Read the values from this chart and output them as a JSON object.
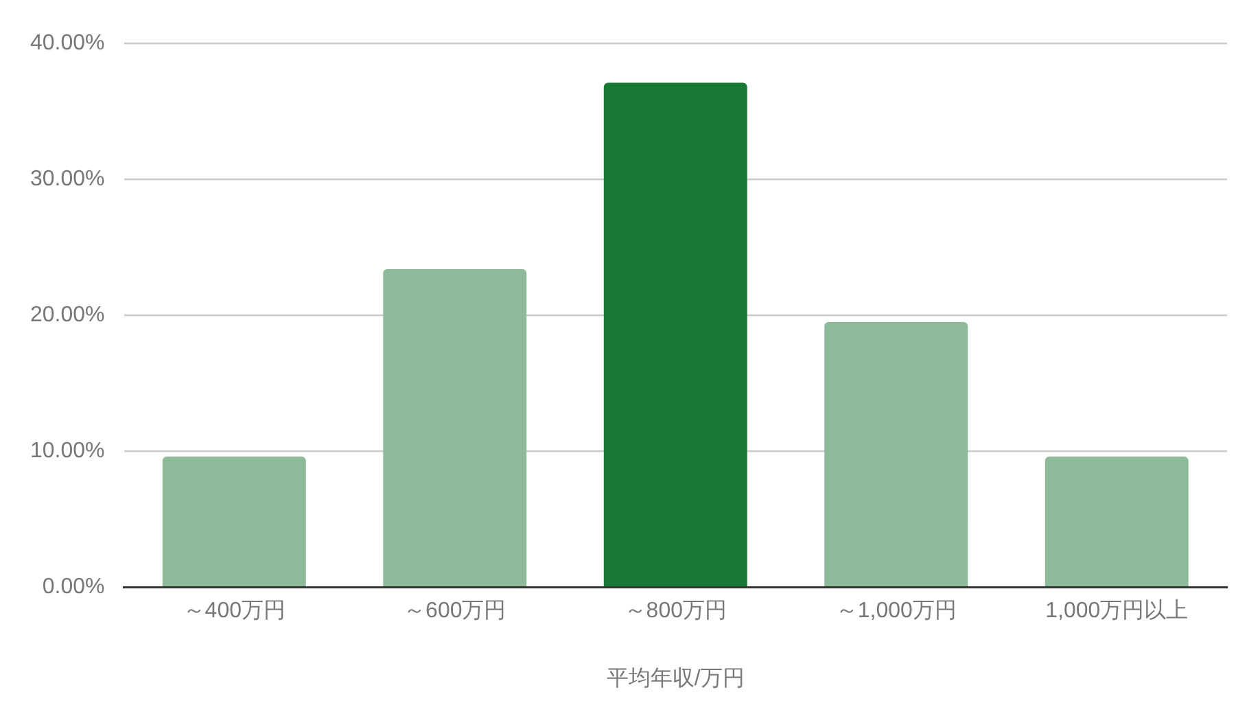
{
  "chart_data": {
    "type": "bar",
    "xlabel": "平均年収/万円",
    "categories": [
      "～400万円",
      "～600万円",
      "～800万円",
      "～1,000万円",
      "1,000万円以上"
    ],
    "values": [
      9.6,
      23.4,
      37.1,
      19.5,
      9.6
    ],
    "colors": [
      "#8dbb9a",
      "#8dbb9a",
      "#1a7837",
      "#8dbb9a",
      "#8dbb9a"
    ],
    "ylim": [
      0,
      40
    ],
    "yticks": [
      {
        "value": 0,
        "label": "0.00%"
      },
      {
        "value": 10,
        "label": "10.00%"
      },
      {
        "value": 20,
        "label": "20.00%"
      },
      {
        "value": 30,
        "label": "30.00%"
      },
      {
        "value": 40,
        "label": "40.00%"
      }
    ],
    "grid": "y",
    "legend": false
  }
}
